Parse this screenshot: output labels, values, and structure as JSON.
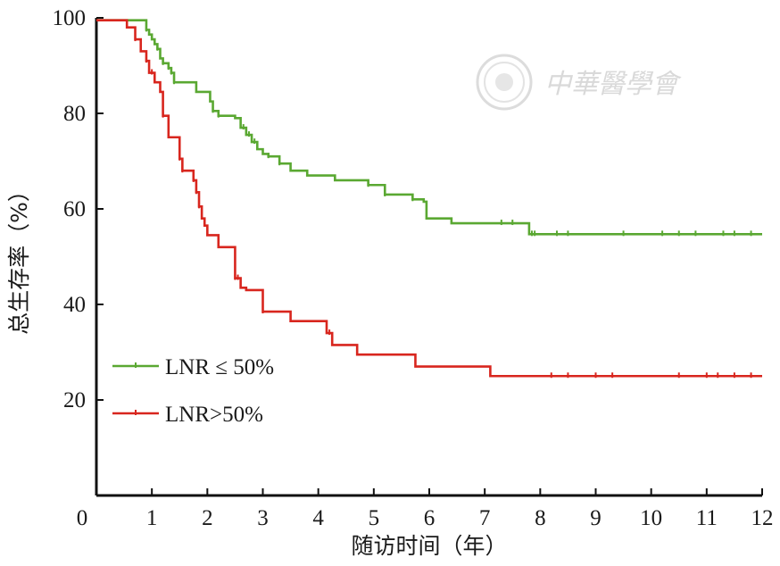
{
  "chart_data": {
    "type": "line",
    "step": true,
    "title": "",
    "xlabel": "随访时间（年）",
    "ylabel": "总生存率（%）",
    "xlim": [
      0,
      12
    ],
    "ylim": [
      0,
      100
    ],
    "x_ticks": [
      "0",
      "1",
      "2",
      "3",
      "4",
      "5",
      "6",
      "7",
      "8",
      "9",
      "10",
      "11",
      "12"
    ],
    "y_ticks": [
      "20",
      "40",
      "60",
      "80",
      "100"
    ],
    "grid": false,
    "legend_position": "lower-left",
    "series": [
      {
        "name": "LNR ≤ 50%",
        "color": "#5aa832",
        "x": [
          0,
          0.8,
          0.9,
          0.95,
          1.0,
          1.05,
          1.1,
          1.15,
          1.2,
          1.3,
          1.35,
          1.4,
          1.5,
          1.8,
          1.9,
          2.05,
          2.1,
          2.2,
          2.5,
          2.6,
          2.7,
          2.8,
          2.9,
          3.0,
          3.1,
          3.3,
          3.5,
          3.8,
          4.3,
          4.9,
          5.2,
          5.7,
          5.9,
          5.95,
          6.4,
          7.8,
          12.0
        ],
        "y": [
          99.5,
          99.5,
          97.5,
          96.5,
          95.5,
          94.5,
          93.5,
          91.5,
          90.5,
          89.5,
          88.5,
          86.5,
          86.5,
          84.5,
          84.5,
          82.5,
          80.5,
          79.5,
          79,
          77,
          75.5,
          74,
          72.5,
          71.5,
          71,
          69.5,
          68,
          67,
          66,
          65,
          63,
          62,
          61.5,
          58,
          57,
          54.7,
          54.7
        ],
        "censor_x": [
          0.9,
          1.1,
          1.2,
          1.3,
          1.35,
          1.4,
          2.1,
          2.2,
          2.65,
          2.75,
          2.85,
          3.1,
          3.3,
          4.9,
          5.2,
          5.7,
          7.3,
          7.5,
          7.85,
          7.9,
          8.3,
          8.5,
          9.5,
          10.2,
          10.5,
          10.8,
          11.3,
          11.5,
          11.8
        ],
        "censor_y": [
          97.5,
          93.5,
          90.5,
          89.5,
          88.5,
          86.5,
          80.5,
          79.5,
          77,
          75.5,
          74,
          71,
          69.5,
          65,
          63,
          62,
          57,
          57,
          54.7,
          54.7,
          54.7,
          54.7,
          54.7,
          54.7,
          54.7,
          54.7,
          54.7,
          54.7,
          54.7
        ]
      },
      {
        "name": "LNR>50%",
        "color": "#d8261e",
        "x": [
          0,
          0.55,
          0.7,
          0.8,
          0.9,
          0.95,
          1.05,
          1.15,
          1.2,
          1.3,
          1.35,
          1.5,
          1.55,
          1.6,
          1.75,
          1.8,
          1.85,
          1.9,
          1.95,
          2.0,
          2.2,
          2.5,
          2.6,
          2.7,
          3.0,
          3.5,
          4.15,
          4.25,
          4.7,
          5.75,
          7.1,
          12.0
        ],
        "y": [
          99.5,
          98,
          95.5,
          93,
          91,
          88.5,
          86.5,
          84.5,
          79.5,
          75,
          75,
          70.5,
          68,
          68,
          66,
          63.5,
          60.5,
          58,
          56.5,
          54.5,
          52,
          45.5,
          43.5,
          43,
          38.5,
          36.5,
          34,
          31.5,
          29.5,
          27,
          25,
          25
        ],
        "censor_x": [
          0.7,
          0.9,
          1.0,
          1.2,
          1.5,
          1.55,
          1.75,
          1.8,
          1.85,
          2.5,
          2.55,
          3.0,
          4.2,
          8.2,
          8.5,
          9.0,
          9.3,
          10.5,
          11.0,
          11.2,
          11.5,
          11.8
        ],
        "censor_y": [
          95.5,
          91,
          88.5,
          79.5,
          70.5,
          68,
          66,
          63.5,
          60.5,
          45.5,
          45.5,
          38.5,
          34,
          25,
          25,
          25,
          25,
          25,
          25,
          25,
          25,
          25
        ]
      }
    ]
  },
  "watermark": {
    "text": "中華醫學會"
  }
}
